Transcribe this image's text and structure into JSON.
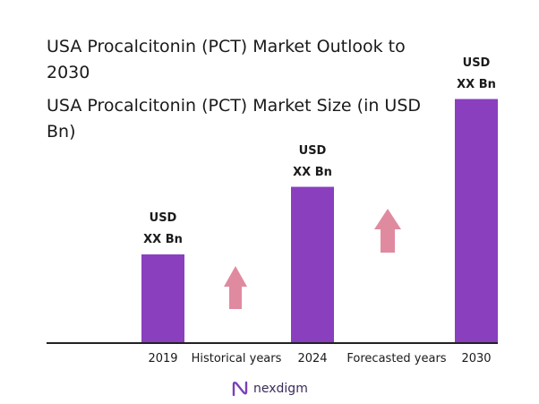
{
  "title": "USA Procalcitonin (PCT) Market Outlook to 2030",
  "subtitle": "USA Procalcitonin (PCT) Market Size (in USD Bn)",
  "chart_data": {
    "type": "bar",
    "title": "USA Procalcitonin (PCT) Market Outlook to 2030",
    "subtitle": "USA Procalcitonin (PCT) Market Size (in USD Bn)",
    "categories": [
      "2019",
      "2024",
      "2030"
    ],
    "values": [
      1.0,
      1.77,
      2.77
    ],
    "data_labels": [
      [
        "USD",
        "XX Bn"
      ],
      [
        "USD",
        "XX Bn"
      ],
      [
        "USD",
        "XX Bn"
      ]
    ],
    "ylim": [
      0,
      3
    ],
    "grid": false,
    "bar_color": "#8a3fbf",
    "period_labels": [
      "Historical years",
      "Forecasted years"
    ],
    "arrow_color": "#e08aa0"
  },
  "logo": {
    "text": "nexdigm",
    "icon": "nexdigm-logo-icon"
  }
}
